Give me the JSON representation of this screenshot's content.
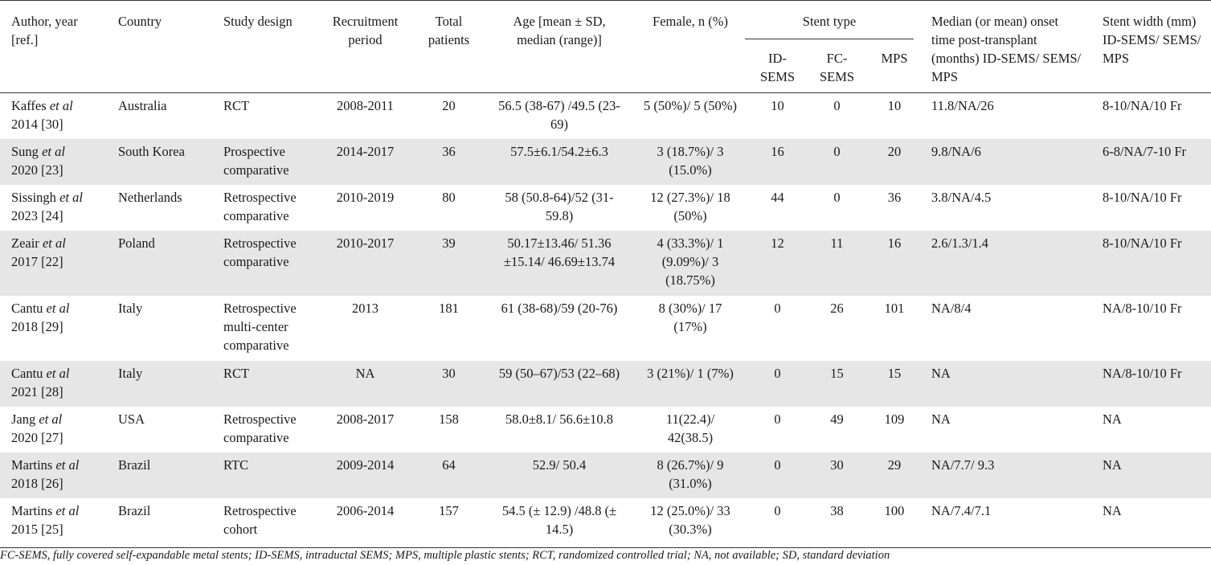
{
  "headers": {
    "author": "Author, year [ref.]",
    "country": "Country",
    "design": "Study design",
    "period": "Recruitment period",
    "total": "Total patients",
    "age": "Age [mean ± SD, median (range)]",
    "female": "Female, n (%)",
    "stent_type": "Stent type",
    "id_sems": "ID-SEMS",
    "fc_sems": "FC-SEMS",
    "mps": "MPS",
    "onset": "Median (or mean) onset time post-transplant (months) ID-SEMS/ SEMS/ MPS",
    "width": "Stent width (mm) ID-SEMS/ SEMS/ MPS"
  },
  "rows": [
    {
      "author_name": "Kaffes",
      "et_al": "et al",
      "author_year": "2014 [30]",
      "country": "Australia",
      "design": "RCT",
      "period": "2008-2011",
      "total": "20",
      "age": "56.5 (38-67) /49.5 (23-69)",
      "female": "5 (50%)/ 5 (50%)",
      "id_sems": "10",
      "fc_sems": "0",
      "mps": "10",
      "onset": "11.8/NA/26",
      "width": "8-10/NA/10 Fr"
    },
    {
      "author_name": "Sung",
      "et_al": "et al",
      "author_year": "2020 [23]",
      "country": "South Korea",
      "design": "Prospective comparative",
      "period": "2014-2017",
      "total": "36",
      "age": "57.5±6.1/54.2±6.3",
      "female": "3 (18.7%)/ 3 (15.0%)",
      "id_sems": "16",
      "fc_sems": "0",
      "mps": "20",
      "onset": "9.8/NA/6",
      "width": "6-8/NA/7-10 Fr"
    },
    {
      "author_name": "Sissingh",
      "et_al": "et al",
      "author_year": "2023 [24]",
      "country": "Netherlands",
      "design": "Retrospective comparative",
      "period": "2010-2019",
      "total": "80",
      "age": "58 (50.8-64)/52 (31-59.8)",
      "female": "12 (27.3%)/ 18 (50%)",
      "id_sems": "44",
      "fc_sems": "0",
      "mps": "36",
      "onset": "3.8/NA/4.5",
      "width": "8-10/NA/10 Fr"
    },
    {
      "author_name": "Zeair",
      "et_al": "et al",
      "author_year": "2017 [22]",
      "country": "Poland",
      "design": "Retrospective comparative",
      "period": "2010-2017",
      "total": "39",
      "age": "50.17±13.46/ 51.36 ±15.14/ 46.69±13.74",
      "female": "4 (33.3%)/ 1 (9.09%)/ 3 (18.75%)",
      "id_sems": "12",
      "fc_sems": "11",
      "mps": "16",
      "onset": "2.6/1.3/1.4",
      "width": "8-10/NA/10 Fr"
    },
    {
      "author_name": "Cantu",
      "et_al": "et al",
      "author_year": "2018 [29]",
      "country": "Italy",
      "design": "Retrospective multi-center comparative",
      "period": "2013",
      "total": "181",
      "age": "61 (38-68)/59 (20-76)",
      "female": "8 (30%)/ 17 (17%)",
      "id_sems": "0",
      "fc_sems": "26",
      "mps": "101",
      "onset": "NA/8/4",
      "width": "NA/8-10/10 Fr"
    },
    {
      "author_name": "Cantu",
      "et_al": "et al",
      "author_year": "2021 [28]",
      "country": "Italy",
      "design": "RCT",
      "period": "NA",
      "total": "30",
      "age": "59 (50–67)/53 (22–68)",
      "female": "3 (21%)/ 1 (7%)",
      "id_sems": "0",
      "fc_sems": "15",
      "mps": "15",
      "onset": "NA",
      "width": "NA/8-10/10 Fr"
    },
    {
      "author_name": "Jang",
      "et_al": "et al",
      "author_year": "2020 [27]",
      "country": "USA",
      "design": "Retrospective comparative",
      "period": "2008-2017",
      "total": "158",
      "age": "58.0±8.1/ 56.6±10.8",
      "female": "11(22.4)/ 42(38.5)",
      "id_sems": "0",
      "fc_sems": "49",
      "mps": "109",
      "onset": "NA",
      "width": "NA"
    },
    {
      "author_name": "Martins",
      "et_al": "et al",
      "author_year": "2018 [26]",
      "country": "Brazil",
      "design": "RTC",
      "period": "2009-2014",
      "total": "64",
      "age": "52.9/ 50.4",
      "female": "8 (26.7%)/ 9 (31.0%)",
      "id_sems": "0",
      "fc_sems": "30",
      "mps": "29",
      "onset": "NA/7.7/ 9.3",
      "width": "NA"
    },
    {
      "author_name": "Martins",
      "et_al": "et al",
      "author_year": "2015 [25]",
      "country": "Brazil",
      "design": "Retrospective cohort",
      "period": "2006-2014",
      "total": "157",
      "age": "54.5 (± 12.9) /48.8 (± 14.5)",
      "female": "12 (25.0%)/ 33 (30.3%)",
      "id_sems": "0",
      "fc_sems": "38",
      "mps": "100",
      "onset": "NA/7.4/7.1",
      "width": "NA"
    }
  ],
  "footnote": "FC-SEMS, fully covered self-expandable metal stents; ID-SEMS, intraductal SEMS; MPS, multiple plastic stents; RCT, randomized controlled trial; NA, not available; SD, standard deviation"
}
